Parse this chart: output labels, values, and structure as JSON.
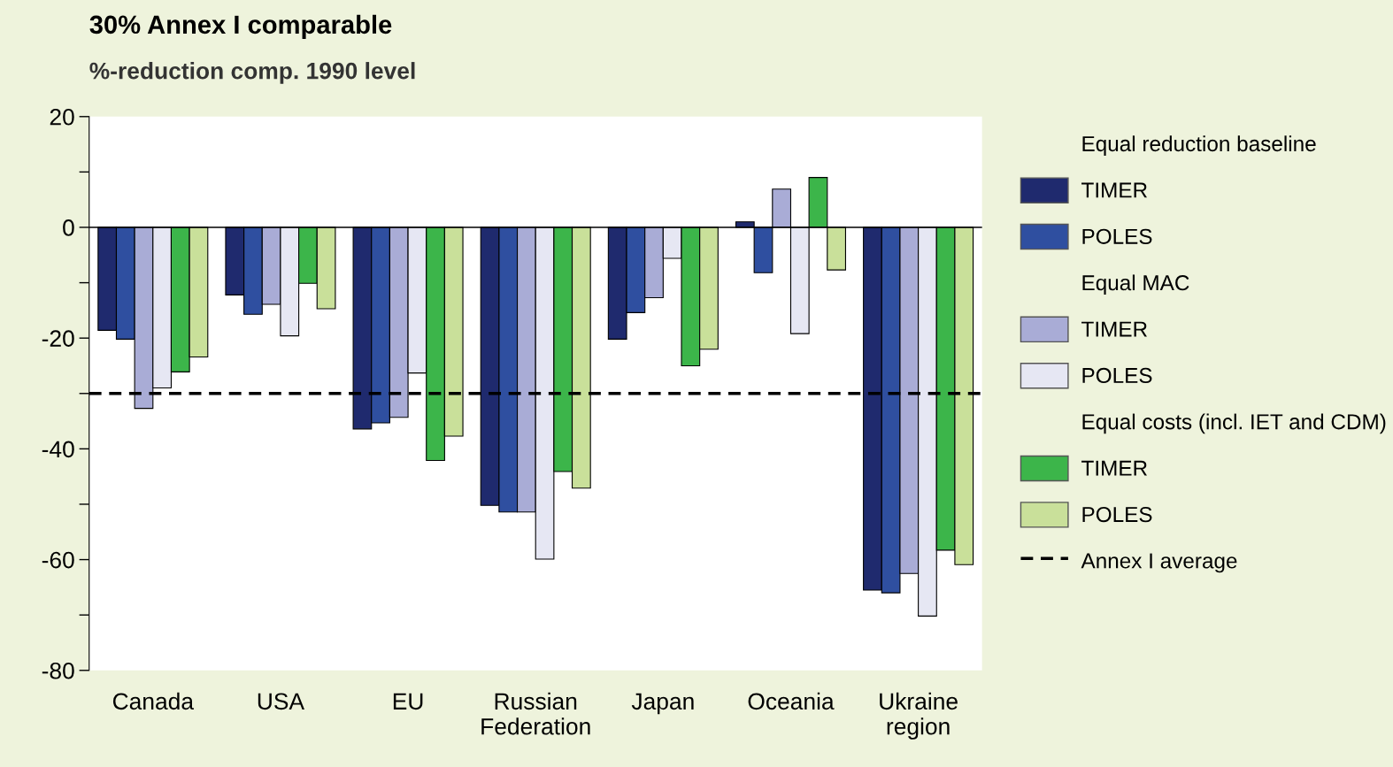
{
  "chart_data": {
    "type": "bar",
    "title": "30% Annex I comparable",
    "subtitle": "%-reduction comp. 1990 level",
    "categories": [
      "Canada",
      "USA",
      "EU",
      "Russian\nFederation",
      "Japan",
      "Oceania",
      "Ukraine\nregion"
    ],
    "series": [
      {
        "name": "TIMER",
        "color": "#1f2a6e",
        "values": [
          -18.6,
          -12.2,
          -36.4,
          -50.2,
          -20.2,
          1,
          -65.5
        ]
      },
      {
        "name": "POLES",
        "color": "#2f4fa0",
        "values": [
          -20.2,
          -15.7,
          -35.3,
          -51.4,
          -15.4,
          -8.2,
          -66
        ]
      },
      {
        "name": "TIMER",
        "color": "#a9acd6",
        "values": [
          -32.7,
          -13.9,
          -34.3,
          -51.4,
          -12.7,
          6.9,
          -62.5
        ]
      },
      {
        "name": "POLES",
        "color": "#e6e7f3",
        "values": [
          -29,
          -19.6,
          -26.3,
          -59.9,
          -5.6,
          -19.2,
          -70.2
        ]
      },
      {
        "name": "TIMER",
        "color": "#3cb54a",
        "values": [
          -26.1,
          -10.1,
          -42.1,
          -44.1,
          -25,
          9,
          -58.3
        ]
      },
      {
        "name": "POLES",
        "color": "#c9e09a",
        "values": [
          -23.4,
          -14.7,
          -37.7,
          -47.1,
          -22,
          -7.7,
          -60.9
        ]
      }
    ],
    "annotations": [
      "Equal reduction baseline",
      "Equal MAC",
      "Equal costs (incl. IET and CDM)"
    ],
    "ref_lines": [
      {
        "axis": "y",
        "value": -30,
        "label": "Annex I average",
        "color": "#000000",
        "line_style": "dashed"
      }
    ],
    "ylim": [
      -80,
      20
    ],
    "yticks": [
      -80,
      {
        "value": -70,
        "label": null
      },
      -60,
      {
        "value": -50,
        "label": null
      },
      -40,
      {
        "value": -30,
        "label": null
      },
      -20,
      {
        "value": -10,
        "label": null
      },
      0,
      {
        "value": 10,
        "label": null
      },
      20
    ],
    "grid": false,
    "legend": "right"
  }
}
